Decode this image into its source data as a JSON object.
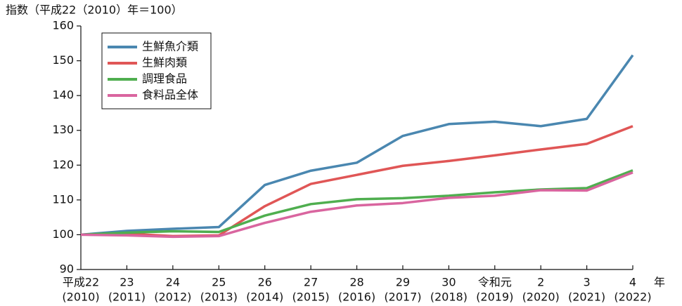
{
  "chart_data": {
    "type": "line",
    "ylabel": "指数（平成22（2010）年＝100）",
    "xlabel": "年",
    "categories": [
      "平成22",
      "23",
      "24",
      "25",
      "26",
      "27",
      "28",
      "29",
      "30",
      "令和元",
      "2",
      "3",
      "4"
    ],
    "category_years": [
      "(2010)",
      "(2011)",
      "(2012)",
      "(2013)",
      "(2014)",
      "(2015)",
      "(2016)",
      "(2017)",
      "(2018)",
      "(2019)",
      "(2020)",
      "(2021)",
      "(2022)"
    ],
    "series": [
      {
        "name": "生鮮魚介類",
        "color": "#4a87b0",
        "values": [
          100,
          101.1,
          101.7,
          102.2,
          114.3,
          118.4,
          120.7,
          128.4,
          131.8,
          132.5,
          131.2,
          133.3,
          151.6
        ]
      },
      {
        "name": "生鮮肉類",
        "color": "#e05656",
        "values": [
          100,
          100.3,
          99.6,
          99.8,
          108.2,
          114.6,
          117.2,
          119.8,
          121.2,
          122.8,
          124.5,
          126.1,
          131.2
        ]
      },
      {
        "name": "調理食品",
        "color": "#4fae4f",
        "values": [
          100,
          100.6,
          101.0,
          100.8,
          105.5,
          108.8,
          110.2,
          110.5,
          111.2,
          112.2,
          113.0,
          113.4,
          118.5
        ]
      },
      {
        "name": "食料品全体",
        "color": "#d9659f",
        "values": [
          100,
          99.8,
          99.4,
          99.6,
          103.4,
          106.6,
          108.4,
          109.1,
          110.6,
          111.2,
          112.8,
          112.7,
          117.9
        ]
      }
    ],
    "ylim": [
      90,
      160
    ],
    "yticks": [
      90,
      100,
      110,
      120,
      130,
      140,
      150,
      160
    ],
    "grid": false,
    "legend": "upper-left"
  }
}
